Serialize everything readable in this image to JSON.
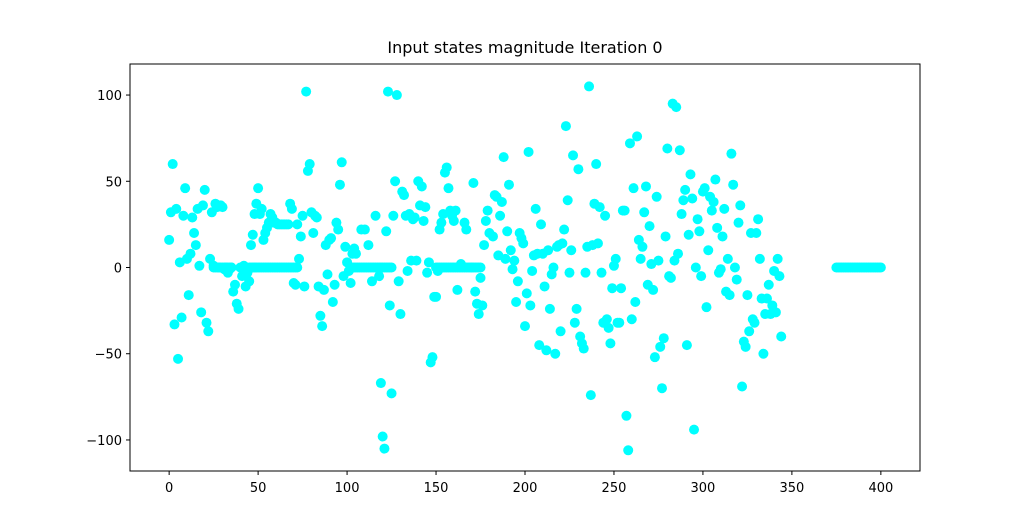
{
  "chart_data": {
    "type": "scatter",
    "title": "Input states magnitude Iteration 0",
    "xlabel": "",
    "ylabel": "",
    "xlim": [
      -22,
      422
    ],
    "ylim": [
      -118,
      118
    ],
    "x_ticks": [
      0,
      50,
      100,
      150,
      200,
      250,
      300,
      350,
      400
    ],
    "y_ticks": [
      -100,
      -50,
      0,
      50,
      100
    ],
    "grid": false,
    "marker_color": "#00ffff",
    "points": [
      [
        0,
        16
      ],
      [
        1,
        32
      ],
      [
        2,
        60
      ],
      [
        3,
        -33
      ],
      [
        4,
        34
      ],
      [
        5,
        -53
      ],
      [
        6,
        3
      ],
      [
        7,
        -29
      ],
      [
        8,
        30
      ],
      [
        9,
        46
      ],
      [
        10,
        5
      ],
      [
        11,
        -16
      ],
      [
        12,
        8
      ],
      [
        13,
        29
      ],
      [
        14,
        20
      ],
      [
        15,
        13
      ],
      [
        16,
        34
      ],
      [
        17,
        1
      ],
      [
        18,
        -26
      ],
      [
        19,
        36
      ],
      [
        20,
        45
      ],
      [
        21,
        -32
      ],
      [
        22,
        -37
      ],
      [
        23,
        5
      ],
      [
        24,
        32
      ],
      [
        25,
        1
      ],
      [
        26,
        37
      ],
      [
        27,
        35
      ],
      [
        28,
        0
      ],
      [
        29,
        36
      ],
      [
        30,
        35
      ],
      [
        31,
        -1
      ],
      [
        32,
        0
      ],
      [
        33,
        -3
      ],
      [
        34,
        -1
      ],
      [
        35,
        0
      ],
      [
        36,
        -14
      ],
      [
        37,
        -10
      ],
      [
        38,
        -21
      ],
      [
        39,
        -24
      ],
      [
        40,
        0
      ],
      [
        41,
        -5
      ],
      [
        42,
        1
      ],
      [
        43,
        -11
      ],
      [
        44,
        -3
      ],
      [
        45,
        -8
      ],
      [
        46,
        13
      ],
      [
        47,
        19
      ],
      [
        48,
        31
      ],
      [
        49,
        37
      ],
      [
        50,
        46
      ],
      [
        51,
        31
      ],
      [
        52,
        34
      ],
      [
        53,
        16
      ],
      [
        54,
        20
      ],
      [
        55,
        23
      ],
      [
        56,
        26
      ],
      [
        57,
        31
      ],
      [
        58,
        29
      ],
      [
        59,
        26
      ],
      [
        60,
        26
      ],
      [
        61,
        25
      ],
      [
        62,
        25
      ],
      [
        63,
        25
      ],
      [
        64,
        25
      ],
      [
        65,
        25
      ],
      [
        66,
        25
      ],
      [
        67,
        25
      ],
      [
        68,
        37
      ],
      [
        69,
        34
      ],
      [
        70,
        -9
      ],
      [
        71,
        -10
      ],
      [
        72,
        25
      ],
      [
        73,
        5
      ],
      [
        74,
        18
      ],
      [
        75,
        30
      ],
      [
        76,
        -11
      ],
      [
        77,
        102
      ],
      [
        78,
        56
      ],
      [
        79,
        60
      ],
      [
        80,
        32
      ],
      [
        81,
        20
      ],
      [
        82,
        30
      ],
      [
        83,
        29
      ],
      [
        84,
        -11
      ],
      [
        85,
        -28
      ],
      [
        86,
        -34
      ],
      [
        87,
        -13
      ],
      [
        88,
        13
      ],
      [
        89,
        -4
      ],
      [
        90,
        16
      ],
      [
        91,
        17
      ],
      [
        92,
        -20
      ],
      [
        93,
        -10
      ],
      [
        94,
        26
      ],
      [
        95,
        22
      ],
      [
        96,
        48
      ],
      [
        97,
        61
      ],
      [
        98,
        -5
      ],
      [
        99,
        12
      ],
      [
        100,
        3
      ],
      [
        101,
        -2
      ],
      [
        102,
        -9
      ],
      [
        103,
        8
      ],
      [
        104,
        11
      ],
      [
        105,
        8
      ],
      [
        108,
        22
      ],
      [
        110,
        22
      ],
      [
        112,
        13
      ],
      [
        114,
        -8
      ],
      [
        116,
        30
      ],
      [
        118,
        -5
      ],
      [
        119,
        -67
      ],
      [
        120,
        -98
      ],
      [
        121,
        -105
      ],
      [
        122,
        21
      ],
      [
        123,
        102
      ],
      [
        124,
        -22
      ],
      [
        125,
        -73
      ],
      [
        126,
        30
      ],
      [
        127,
        50
      ],
      [
        128,
        100
      ],
      [
        129,
        -8
      ],
      [
        130,
        -27
      ],
      [
        131,
        44
      ],
      [
        132,
        42
      ],
      [
        133,
        30
      ],
      [
        134,
        -2
      ],
      [
        135,
        31
      ],
      [
        136,
        4
      ],
      [
        137,
        28
      ],
      [
        138,
        29
      ],
      [
        139,
        4
      ],
      [
        140,
        50
      ],
      [
        141,
        36
      ],
      [
        142,
        47
      ],
      [
        143,
        27
      ],
      [
        144,
        35
      ],
      [
        145,
        -3
      ],
      [
        146,
        3
      ],
      [
        147,
        -55
      ],
      [
        148,
        -52
      ],
      [
        149,
        -17
      ],
      [
        150,
        -17
      ],
      [
        151,
        -2
      ],
      [
        152,
        22
      ],
      [
        153,
        26
      ],
      [
        154,
        31
      ],
      [
        155,
        55
      ],
      [
        156,
        58
      ],
      [
        157,
        46
      ],
      [
        158,
        33
      ],
      [
        159,
        30
      ],
      [
        160,
        27
      ],
      [
        161,
        33
      ],
      [
        162,
        -13
      ],
      [
        164,
        2
      ],
      [
        166,
        26
      ],
      [
        167,
        22
      ],
      [
        170,
        0
      ],
      [
        171,
        49
      ],
      [
        172,
        -14
      ],
      [
        173,
        -21
      ],
      [
        174,
        -27
      ],
      [
        175,
        -6
      ],
      [
        176,
        -22
      ],
      [
        177,
        13
      ],
      [
        178,
        27
      ],
      [
        179,
        33
      ],
      [
        180,
        20
      ],
      [
        182,
        18
      ],
      [
        183,
        42
      ],
      [
        184,
        41
      ],
      [
        185,
        7
      ],
      [
        186,
        30
      ],
      [
        187,
        38
      ],
      [
        188,
        64
      ],
      [
        189,
        5
      ],
      [
        190,
        21
      ],
      [
        191,
        48
      ],
      [
        192,
        10
      ],
      [
        193,
        -1
      ],
      [
        194,
        4
      ],
      [
        195,
        -20
      ],
      [
        196,
        -8
      ],
      [
        197,
        20
      ],
      [
        198,
        17
      ],
      [
        199,
        14
      ],
      [
        200,
        -34
      ],
      [
        201,
        -15
      ],
      [
        202,
        67
      ],
      [
        203,
        -22
      ],
      [
        204,
        -2
      ],
      [
        205,
        7
      ],
      [
        206,
        34
      ],
      [
        207,
        8
      ],
      [
        208,
        -45
      ],
      [
        209,
        25
      ],
      [
        210,
        8
      ],
      [
        211,
        -11
      ],
      [
        212,
        -48
      ],
      [
        213,
        10
      ],
      [
        214,
        -24
      ],
      [
        215,
        -4
      ],
      [
        216,
        0
      ],
      [
        217,
        -50
      ],
      [
        218,
        12
      ],
      [
        219,
        13
      ],
      [
        220,
        -37
      ],
      [
        221,
        14
      ],
      [
        222,
        22
      ],
      [
        223,
        82
      ],
      [
        224,
        39
      ],
      [
        225,
        -3
      ],
      [
        226,
        10
      ],
      [
        227,
        65
      ],
      [
        228,
        -32
      ],
      [
        229,
        -24
      ],
      [
        230,
        57
      ],
      [
        231,
        -40
      ],
      [
        232,
        -44
      ],
      [
        233,
        -47
      ],
      [
        234,
        -3
      ],
      [
        235,
        12
      ],
      [
        236,
        105
      ],
      [
        237,
        -74
      ],
      [
        238,
        13
      ],
      [
        239,
        37
      ],
      [
        240,
        60
      ],
      [
        241,
        14
      ],
      [
        242,
        35
      ],
      [
        243,
        -3
      ],
      [
        244,
        -32
      ],
      [
        245,
        30
      ],
      [
        246,
        -30
      ],
      [
        247,
        -35
      ],
      [
        248,
        -44
      ],
      [
        249,
        -12
      ],
      [
        250,
        1
      ],
      [
        251,
        5
      ],
      [
        252,
        -32
      ],
      [
        253,
        -32
      ],
      [
        254,
        -12
      ],
      [
        255,
        33
      ],
      [
        256,
        33
      ],
      [
        257,
        -86
      ],
      [
        258,
        -106
      ],
      [
        259,
        72
      ],
      [
        260,
        -30
      ],
      [
        261,
        46
      ],
      [
        262,
        -20
      ],
      [
        263,
        76
      ],
      [
        264,
        16
      ],
      [
        265,
        5
      ],
      [
        266,
        12
      ],
      [
        267,
        32
      ],
      [
        268,
        47
      ],
      [
        269,
        -10
      ],
      [
        270,
        24
      ],
      [
        271,
        2
      ],
      [
        272,
        -13
      ],
      [
        273,
        -52
      ],
      [
        274,
        41
      ],
      [
        275,
        4
      ],
      [
        276,
        -46
      ],
      [
        277,
        -70
      ],
      [
        278,
        -41
      ],
      [
        279,
        18
      ],
      [
        280,
        69
      ],
      [
        281,
        -5
      ],
      [
        282,
        -6
      ],
      [
        283,
        95
      ],
      [
        284,
        4
      ],
      [
        285,
        93
      ],
      [
        286,
        8
      ],
      [
        287,
        68
      ],
      [
        288,
        31
      ],
      [
        289,
        39
      ],
      [
        290,
        45
      ],
      [
        291,
        -45
      ],
      [
        292,
        19
      ],
      [
        293,
        54
      ],
      [
        294,
        40
      ],
      [
        295,
        -94
      ],
      [
        296,
        0
      ],
      [
        297,
        28
      ],
      [
        298,
        21
      ],
      [
        299,
        -5
      ],
      [
        300,
        44
      ],
      [
        301,
        46
      ],
      [
        302,
        -23
      ],
      [
        303,
        10
      ],
      [
        304,
        41
      ],
      [
        305,
        33
      ],
      [
        306,
        38
      ],
      [
        307,
        51
      ],
      [
        308,
        23
      ],
      [
        309,
        -3
      ],
      [
        310,
        -1
      ],
      [
        311,
        18
      ],
      [
        312,
        34
      ],
      [
        313,
        -14
      ],
      [
        314,
        5
      ],
      [
        315,
        -16
      ],
      [
        316,
        66
      ],
      [
        317,
        48
      ],
      [
        318,
        0
      ],
      [
        319,
        -7
      ],
      [
        320,
        26
      ],
      [
        321,
        36
      ],
      [
        322,
        -69
      ],
      [
        323,
        -43
      ],
      [
        324,
        -46
      ],
      [
        325,
        -16
      ],
      [
        326,
        -37
      ],
      [
        327,
        20
      ],
      [
        328,
        -30
      ],
      [
        329,
        -32
      ],
      [
        330,
        20
      ],
      [
        331,
        28
      ],
      [
        332,
        5
      ],
      [
        333,
        -18
      ],
      [
        334,
        -50
      ],
      [
        335,
        -27
      ],
      [
        336,
        -18
      ],
      [
        337,
        -10
      ],
      [
        338,
        -27
      ],
      [
        339,
        -22
      ],
      [
        340,
        -2
      ],
      [
        341,
        -26
      ],
      [
        342,
        5
      ],
      [
        343,
        -5
      ],
      [
        344,
        -40
      ]
    ],
    "flat_segments": [
      {
        "x_start": 25,
        "x_end": 35,
        "y": 0
      },
      {
        "x_start": 45,
        "x_end": 72,
        "y": 0
      },
      {
        "x_start": 103,
        "x_end": 125,
        "y": 0
      },
      {
        "x_start": 150,
        "x_end": 175,
        "y": 0
      },
      {
        "x_start": 375,
        "x_end": 400,
        "y": 0
      }
    ]
  }
}
